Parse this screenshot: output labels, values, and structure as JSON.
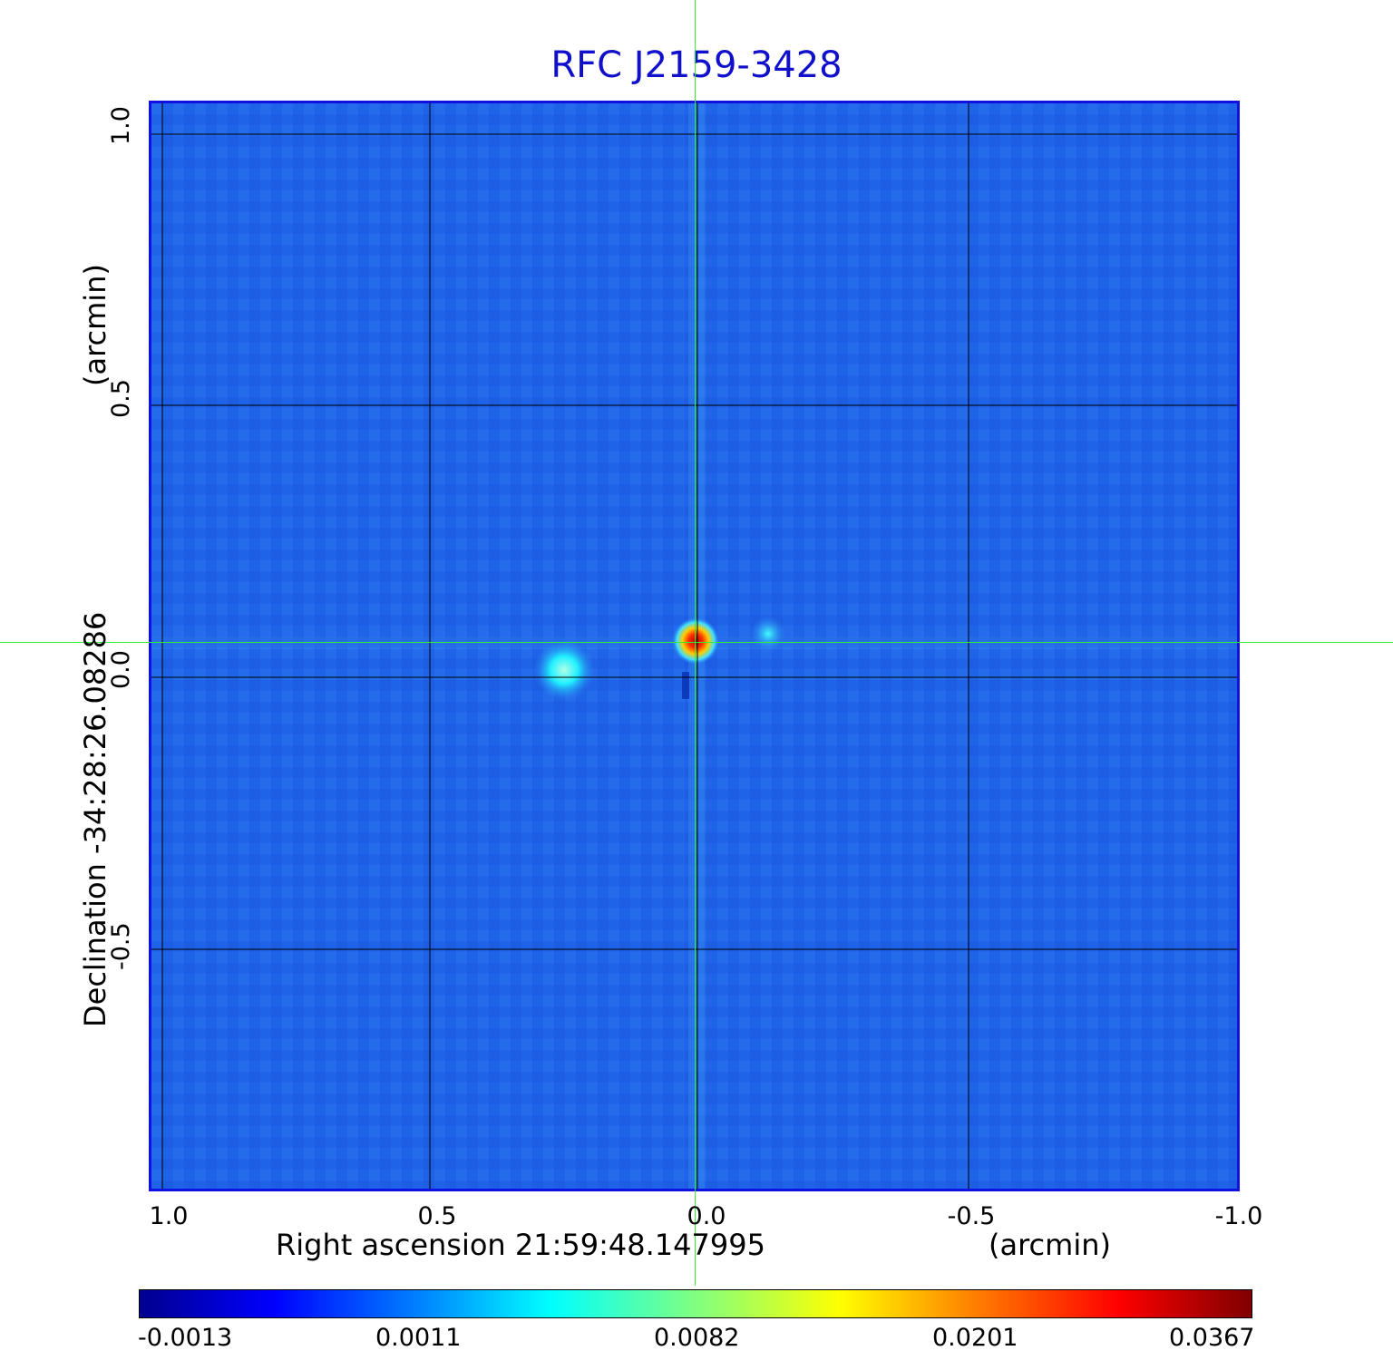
{
  "title": "RFC J2159-3428",
  "x_axis": {
    "label": "Right ascension  21:59:48.147995",
    "unit": "(arcmin)",
    "ticks": [
      "1.0",
      "0.5",
      "0.0",
      "-0.5",
      "-1.0"
    ]
  },
  "y_axis": {
    "label": "Declination  -34:28:26.08286",
    "unit": "(arcmin)",
    "ticks": [
      "1.0",
      "0.5",
      "0.0",
      "-0.5"
    ]
  },
  "colorbar": {
    "colormap": "jet",
    "ticks": [
      "-0.0013",
      "0.0011",
      "0.0082",
      "0.0201",
      "0.0367"
    ]
  },
  "image": {
    "background_color": "#1e64e6",
    "grid": true,
    "crosshair_color": "#33ee33",
    "features": [
      "bright central source (red/yellow peak)",
      "secondary cyan blob to the east",
      "small cyan blob to the west"
    ]
  }
}
